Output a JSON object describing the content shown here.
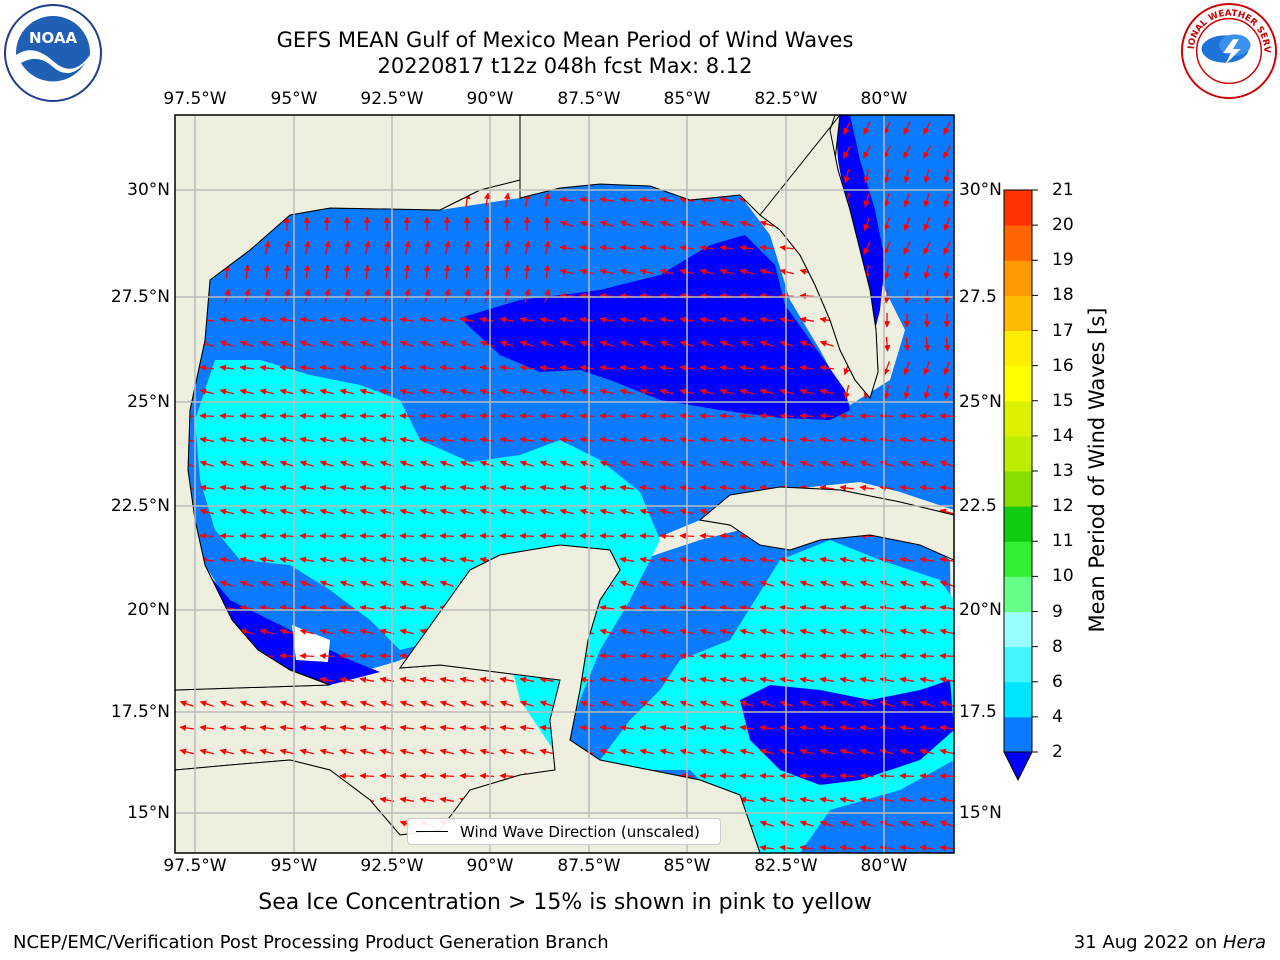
{
  "title": {
    "line1": "GEFS MEAN Gulf of Mexico Mean Period of Wind Waves",
    "line2": "20220817 t12z 048h fcst   Max: 8.12"
  },
  "lon_ticks": [
    "97.5°W",
    "95°W",
    "92.5°W",
    "90°W",
    "87.5°W",
    "85°W",
    "82.5°W",
    "80°W"
  ],
  "lat_ticks_left": [
    "30°N",
    "27.5°N",
    "25°N",
    "22.5°N",
    "20°N",
    "17.5°N",
    "15°N"
  ],
  "lat_ticks_right": [
    "30°N",
    "27.5",
    "25°N",
    "22.5",
    "20°N",
    "17.5",
    "15°N"
  ],
  "colorbar": {
    "label": "Mean Period of Wind Waves [s]",
    "ticks": [
      "2",
      "4",
      "6",
      "8",
      "9",
      "10",
      "11",
      "12",
      "13",
      "14",
      "15",
      "16",
      "17",
      "18",
      "19",
      "20",
      "21"
    ],
    "colors": [
      "#0a7bff",
      "#00e5ff",
      "#44f5ff",
      "#99ffff",
      "#66ff88",
      "#33ee33",
      "#11cc11",
      "#88dd00",
      "#bbee00",
      "#ddf200",
      "#ffff00",
      "#ffee00",
      "#ffbb00",
      "#ff9900",
      "#ff6600",
      "#ff3300"
    ],
    "under_color": "#0000ff"
  },
  "colors": {
    "land": "#efefdf",
    "ocean_low": "#0000ff",
    "ocean_mid": "#0a7bff",
    "ocean_high": "#00ffff",
    "arrows": "#ff0000",
    "grid": "#bbbbbb"
  },
  "legend": {
    "label": "Wind Wave Direction (unscaled)"
  },
  "subtitle": "Sea Ice Concentration > 15% is shown in pink to yellow",
  "footer": {
    "left": "NCEP/EMC/Verification Post Processing Product Generation Branch",
    "right_date": "31 Aug 2022 on ",
    "right_host": "Hera"
  },
  "logos": {
    "left": "NOAA",
    "right_top": "NATIONAL WEATHER SERVICE"
  }
}
